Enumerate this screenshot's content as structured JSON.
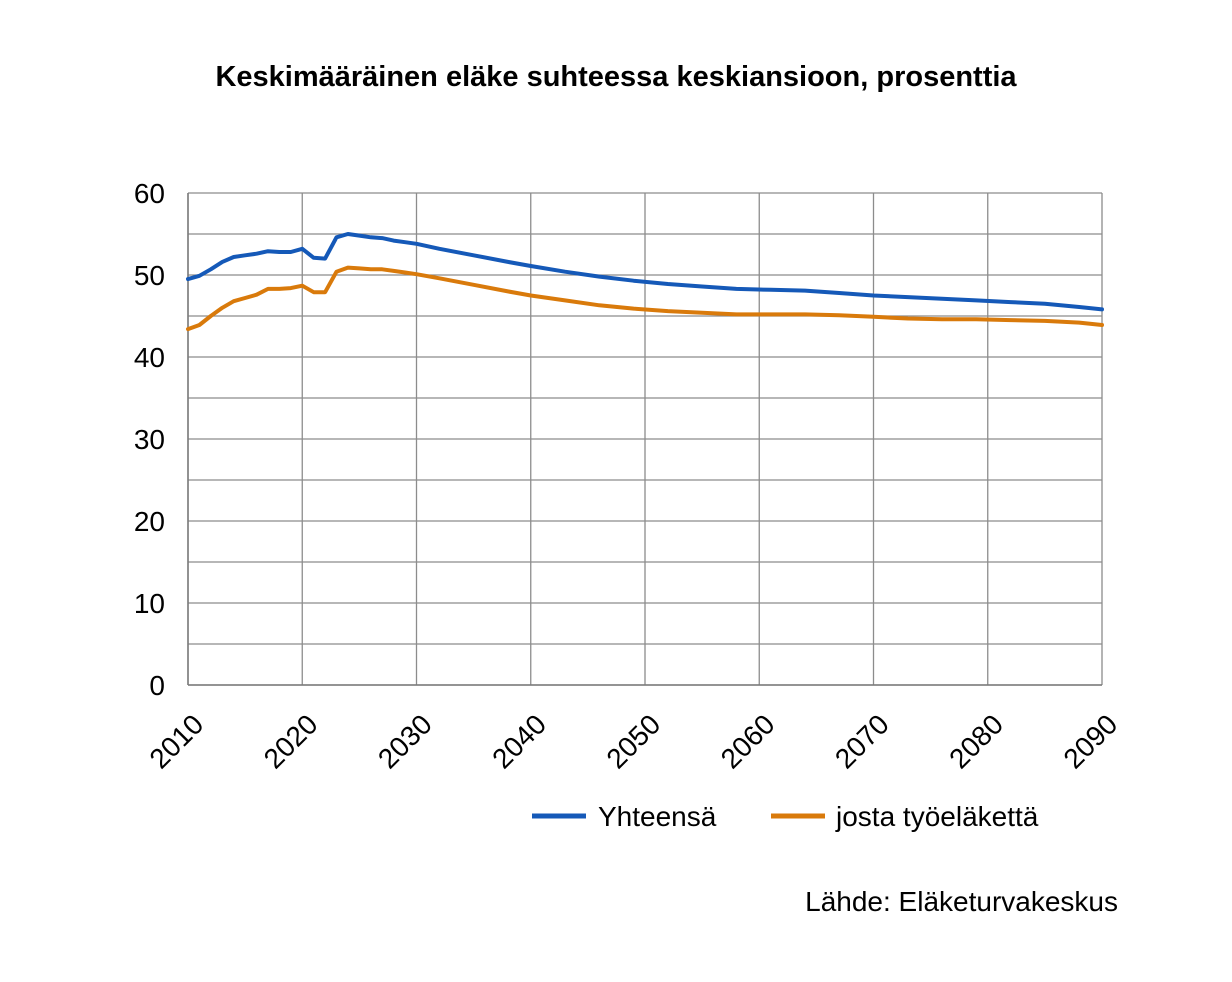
{
  "chart_data": {
    "type": "line",
    "title": "Keskimääräinen eläke suhteessa keskiansioon, prosenttia",
    "xlabel": "",
    "ylabel": "",
    "xlim": [
      2010,
      2090
    ],
    "ylim": [
      0,
      60
    ],
    "y_ticks": [
      "0",
      "10",
      "20",
      "30",
      "40",
      "50",
      "60"
    ],
    "x_ticks": [
      "2010",
      "2020",
      "2030",
      "2040",
      "2050",
      "2060",
      "2070",
      "2080",
      "2090"
    ],
    "grid": true,
    "legend_position": "bottom-right",
    "series": [
      {
        "name": "Yhteensä",
        "color": "#1559B8",
        "x": [
          2010,
          2011,
          2012,
          2013,
          2014,
          2015,
          2016,
          2017,
          2018,
          2019,
          2020,
          2021,
          2022,
          2023,
          2024,
          2025,
          2026,
          2027,
          2028,
          2029,
          2030,
          2032,
          2035,
          2038,
          2040,
          2043,
          2046,
          2049,
          2052,
          2055,
          2058,
          2061,
          2064,
          2067,
          2070,
          2073,
          2076,
          2079,
          2082,
          2085,
          2088,
          2090
        ],
        "values": [
          49.5,
          49.9,
          50.7,
          51.6,
          52.2,
          52.4,
          52.6,
          52.9,
          52.8,
          52.8,
          53.2,
          52.1,
          52.0,
          54.6,
          55.0,
          54.8,
          54.6,
          54.5,
          54.2,
          54.0,
          53.8,
          53.2,
          52.4,
          51.6,
          51.1,
          50.4,
          49.8,
          49.3,
          48.9,
          48.6,
          48.3,
          48.2,
          48.1,
          47.8,
          47.5,
          47.3,
          47.1,
          46.9,
          46.7,
          46.5,
          46.1,
          45.8
        ]
      },
      {
        "name": "josta työeläkettä",
        "color": "#D97A0B",
        "x": [
          2010,
          2011,
          2012,
          2013,
          2014,
          2015,
          2016,
          2017,
          2018,
          2019,
          2020,
          2021,
          2022,
          2023,
          2024,
          2025,
          2026,
          2027,
          2028,
          2029,
          2030,
          2032,
          2035,
          2038,
          2040,
          2043,
          2046,
          2049,
          2052,
          2055,
          2058,
          2061,
          2064,
          2067,
          2070,
          2073,
          2076,
          2079,
          2082,
          2085,
          2088,
          2090
        ],
        "values": [
          43.4,
          43.9,
          45.0,
          46.0,
          46.8,
          47.2,
          47.6,
          48.3,
          48.3,
          48.4,
          48.7,
          47.9,
          47.9,
          50.4,
          50.9,
          50.8,
          50.7,
          50.7,
          50.5,
          50.3,
          50.1,
          49.6,
          48.8,
          48.0,
          47.5,
          46.9,
          46.3,
          45.9,
          45.6,
          45.4,
          45.2,
          45.2,
          45.2,
          45.1,
          44.9,
          44.7,
          44.6,
          44.6,
          44.5,
          44.4,
          44.2,
          43.9
        ]
      }
    ]
  },
  "source_note": "Lähde: Eläketurvakeskus"
}
